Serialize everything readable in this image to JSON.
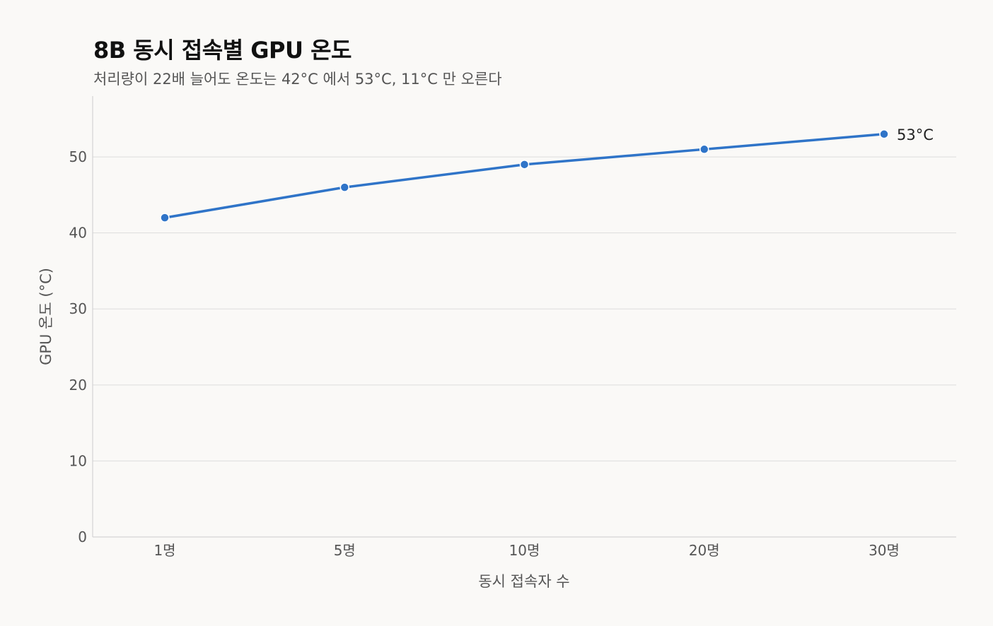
{
  "chart_data": {
    "type": "line",
    "title": "8B 동시 접속별 GPU 온도",
    "subtitle": "처리량이 22배 늘어도 온도는 42°C 에서 53°C, 11°C 만 오른다",
    "xlabel": "동시 접속자 수",
    "ylabel": "GPU 온도 (°C)",
    "categories": [
      "1명",
      "5명",
      "10명",
      "20명",
      "30명"
    ],
    "series": [
      {
        "values": [
          42,
          46,
          49,
          51,
          53
        ]
      }
    ],
    "ylim": [
      0,
      58
    ],
    "yticks": [
      0,
      10,
      20,
      30,
      40,
      50
    ],
    "end_label": "53°C",
    "line_color": "#2f74c8",
    "grid": true
  }
}
